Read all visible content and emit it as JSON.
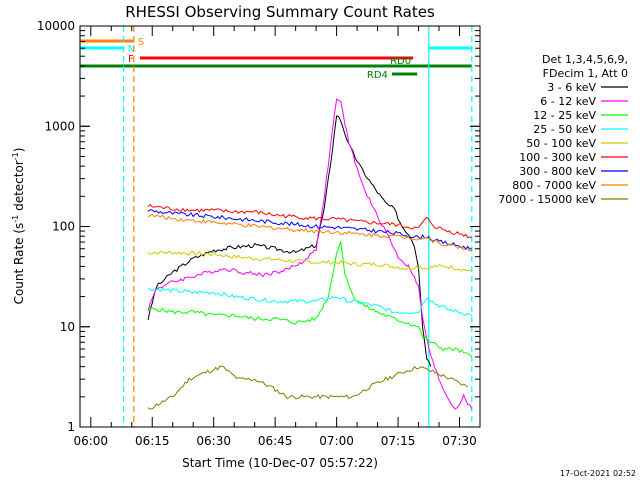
{
  "chart_data": {
    "type": "line",
    "title": "RHESSI Observing Summary Count Rates",
    "xlabel": "Start Time (10-Dec-07 05:57:22)",
    "ylabel": "Count Rate (s⁻¹ detector⁻¹)",
    "ylabel_main": "Count Rate (s",
    "ylabel_sup1": "-1",
    "ylabel_mid": " detector",
    "ylabel_sup2": "-1",
    "ylabel_end": ")",
    "yscale": "log",
    "ylim": [
      1,
      10000
    ],
    "xlim": [
      "05:57:22",
      "07:35:00"
    ],
    "xticks": [
      "06:00",
      "06:15",
      "06:30",
      "06:45",
      "07:00",
      "07:15",
      "07:30"
    ],
    "yticks": [
      "1",
      "10",
      "100",
      "1000",
      "10000"
    ],
    "grid": false,
    "legend_position": "right",
    "legend_header": [
      "Det 1,3,4,5,6,9,",
      "FDecim 1, Att 0"
    ],
    "footer": "17-Oct-2021 02:52",
    "flags": [
      {
        "label": "S",
        "color": "#ff7f00",
        "segments": [
          [
            "05:57:22",
            "06:10:30"
          ]
        ],
        "level": "top"
      },
      {
        "label": "N",
        "color": "#00ffff",
        "segments": [
          [
            "05:57:22",
            "06:08:00"
          ],
          [
            "07:22:30",
            "07:33:00"
          ]
        ],
        "level": "second"
      },
      {
        "label": "F",
        "color": "#ff0000",
        "segments": [
          [
            "06:12:00",
            "07:18:40"
          ]
        ],
        "level": "third"
      },
      {
        "label": "RD0",
        "color": "#008000",
        "segments": [
          [
            "05:57:22",
            "07:33:00"
          ]
        ],
        "level": "fourth"
      },
      {
        "label": "RD4",
        "color": "#008000",
        "segments": [
          [
            "07:13:30",
            "07:19:40"
          ]
        ],
        "level": "fifth"
      }
    ],
    "vlines": [
      {
        "t": "05:57:22",
        "color": "#00ffff",
        "style": "solid"
      },
      {
        "t": "06:08:00",
        "color": "#00ffff",
        "style": "dashed"
      },
      {
        "t": "06:10:30",
        "color": "#ff7f00",
        "style": "dashed"
      },
      {
        "t": "07:22:30",
        "color": "#00ffff",
        "style": "solid"
      },
      {
        "t": "07:33:00",
        "color": "#00ffff",
        "style": "dashed"
      }
    ],
    "series": [
      {
        "name": "3 - 6 keV",
        "color": "#000000",
        "x": [
          "06:14",
          "06:16",
          "06:20",
          "06:25",
          "06:30",
          "06:35",
          "06:40",
          "06:45",
          "06:50",
          "06:55",
          "06:57",
          "06:59",
          "07:00",
          "07:01",
          "07:03",
          "07:06",
          "07:09",
          "07:12",
          "07:14",
          "07:16",
          "07:18",
          "07:19",
          "07:20",
          "07:21",
          "07:22",
          "07:23"
        ],
        "y": [
          12,
          25,
          35,
          48,
          58,
          62,
          65,
          60,
          55,
          65,
          150,
          600,
          1300,
          1150,
          650,
          380,
          250,
          170,
          150,
          100,
          80,
          65,
          40,
          10,
          5,
          4
        ]
      },
      {
        "name": "6 - 12 keV",
        "color": "#ff00ff",
        "x": [
          "06:14",
          "06:16",
          "06:20",
          "06:25",
          "06:30",
          "06:33",
          "06:37",
          "06:42",
          "06:47",
          "06:52",
          "06:55",
          "06:57",
          "06:59",
          "07:00",
          "07:01",
          "07:03",
          "07:06",
          "07:09",
          "07:12",
          "07:15",
          "07:18",
          "07:20",
          "07:21",
          "07:23",
          "07:25",
          "07:27",
          "07:29",
          "07:31",
          "07:33"
        ],
        "y": [
          15,
          24,
          28,
          32,
          36,
          38,
          35,
          33,
          36,
          45,
          60,
          200,
          900,
          1900,
          1700,
          700,
          280,
          150,
          90,
          50,
          38,
          25,
          12,
          5,
          3,
          2,
          1.5,
          2,
          1.5
        ]
      },
      {
        "name": "12 - 25 keV",
        "color": "#00ff00",
        "x": [
          "06:14",
          "06:16",
          "06:20",
          "06:25",
          "06:30",
          "06:35",
          "06:40",
          "06:45",
          "06:50",
          "06:55",
          "06:58",
          "07:00",
          "07:01",
          "07:02",
          "07:04",
          "07:07",
          "07:10",
          "07:14",
          "07:17",
          "07:20",
          "07:21",
          "07:23",
          "07:26",
          "07:29",
          "07:33"
        ],
        "y": [
          15,
          15,
          14,
          14,
          13,
          13,
          12,
          12,
          11,
          12,
          20,
          55,
          70,
          35,
          20,
          16,
          14,
          12,
          11,
          10,
          8,
          7,
          6,
          6,
          5
        ]
      },
      {
        "name": "25 - 50 keV",
        "color": "#00ffff",
        "x": [
          "06:14",
          "06:20",
          "06:25",
          "06:30",
          "06:35",
          "06:40",
          "06:45",
          "06:50",
          "06:55",
          "07:00",
          "07:03",
          "07:07",
          "07:10",
          "07:14",
          "07:17",
          "07:20",
          "07:22",
          "07:24",
          "07:27",
          "07:30",
          "07:33"
        ],
        "y": [
          24,
          23,
          22,
          22,
          20,
          19,
          18,
          18,
          18,
          20,
          18,
          17,
          16,
          14,
          14,
          14,
          20,
          17,
          15,
          14,
          13
        ]
      },
      {
        "name": "50 - 100 keV",
        "color": "#cccc00",
        "x": [
          "06:14",
          "06:20",
          "06:25",
          "06:30",
          "06:35",
          "06:40",
          "06:45",
          "06:50",
          "06:55",
          "07:00",
          "07:05",
          "07:10",
          "07:14",
          "07:17",
          "07:20",
          "07:22",
          "07:24",
          "07:27",
          "07:30",
          "07:33"
        ],
        "y": [
          55,
          55,
          54,
          53,
          50,
          48,
          47,
          45,
          44,
          44,
          42,
          42,
          40,
          38,
          40,
          38,
          40,
          40,
          38,
          36
        ]
      },
      {
        "name": "100 - 300 keV",
        "color": "#ff0000",
        "x": [
          "06:14",
          "06:20",
          "06:25",
          "06:30",
          "06:35",
          "06:40",
          "06:45",
          "06:50",
          "06:55",
          "07:00",
          "07:05",
          "07:10",
          "07:14",
          "07:17",
          "07:20",
          "07:21",
          "07:22",
          "07:24",
          "07:27",
          "07:30",
          "07:33"
        ],
        "y": [
          160,
          150,
          145,
          145,
          140,
          140,
          130,
          125,
          120,
          118,
          112,
          108,
          105,
          100,
          95,
          110,
          120,
          100,
          90,
          85,
          78
        ]
      },
      {
        "name": "300 - 800 keV",
        "color": "#0000ff",
        "x": [
          "06:14",
          "06:20",
          "06:25",
          "06:30",
          "06:35",
          "06:40",
          "06:45",
          "06:50",
          "06:55",
          "07:00",
          "07:05",
          "07:10",
          "07:14",
          "07:17",
          "07:20",
          "07:22",
          "07:24",
          "07:27",
          "07:30",
          "07:33"
        ],
        "y": [
          145,
          135,
          130,
          125,
          120,
          115,
          110,
          105,
          100,
          98,
          94,
          90,
          86,
          82,
          78,
          80,
          72,
          68,
          64,
          60
        ]
      },
      {
        "name": "800 - 7000 keV",
        "color": "#ff7f00",
        "x": [
          "06:14",
          "06:20",
          "06:25",
          "06:30",
          "06:35",
          "06:40",
          "06:45",
          "06:50",
          "06:55",
          "07:00",
          "07:05",
          "07:10",
          "07:14",
          "07:17",
          "07:20",
          "07:22",
          "07:24",
          "07:27",
          "07:30",
          "07:33"
        ],
        "y": [
          130,
          120,
          115,
          110,
          105,
          100,
          97,
          93,
          90,
          88,
          84,
          82,
          80,
          78,
          76,
          78,
          70,
          66,
          62,
          58
        ]
      },
      {
        "name": "7000 - 15000 keV",
        "color": "#808000",
        "x": [
          "06:14",
          "06:20",
          "06:24",
          "06:28",
          "06:32",
          "06:36",
          "06:40",
          "06:44",
          "06:48",
          "06:52",
          "06:56",
          "07:00",
          "07:04",
          "07:08",
          "07:12",
          "07:16",
          "07:20",
          "07:24",
          "07:28",
          "07:32"
        ],
        "y": [
          1.5,
          2,
          3,
          3.5,
          4,
          3,
          3,
          2.5,
          2,
          2,
          2,
          2,
          2,
          2.5,
          3,
          3.5,
          4,
          3.5,
          3,
          2.5
        ]
      }
    ]
  }
}
